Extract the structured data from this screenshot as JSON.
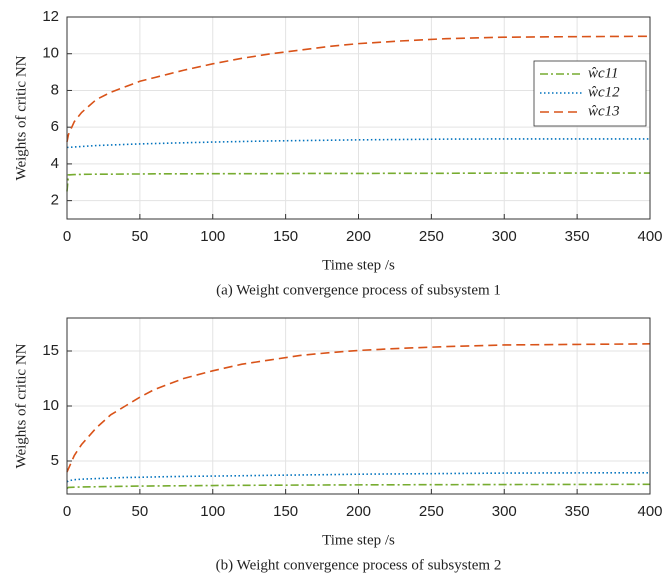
{
  "chart_data": [
    {
      "type": "line",
      "ylabel": "Weights of critic NN",
      "xlabel": "Time step /s",
      "caption": "(a) Weight convergence process of subsystem 1",
      "x": [
        0,
        1,
        5,
        10,
        20,
        30,
        40,
        50,
        60,
        70,
        80,
        100,
        120,
        140,
        160,
        180,
        200,
        230,
        260,
        300,
        350,
        400
      ],
      "series": [
        {
          "name": "ŵc11",
          "color": "#77ac30",
          "dash": "dashdot",
          "values": [
            2.5,
            3.4,
            3.42,
            3.43,
            3.44,
            3.44,
            3.45,
            3.45,
            3.46,
            3.46,
            3.46,
            3.47,
            3.47,
            3.47,
            3.48,
            3.48,
            3.48,
            3.49,
            3.49,
            3.5,
            3.5,
            3.5
          ]
        },
        {
          "name": "ŵc12",
          "color": "#0072bd",
          "dash": "dotted",
          "values": [
            4.9,
            4.9,
            4.92,
            4.95,
            5.0,
            5.03,
            5.06,
            5.09,
            5.11,
            5.13,
            5.15,
            5.19,
            5.22,
            5.25,
            5.27,
            5.29,
            5.31,
            5.33,
            5.35,
            5.36,
            5.36,
            5.36
          ]
        },
        {
          "name": "ŵc13",
          "color": "#d95319",
          "dash": "dashed",
          "values": [
            5.2,
            5.6,
            6.3,
            6.8,
            7.5,
            7.9,
            8.2,
            8.5,
            8.7,
            8.9,
            9.1,
            9.45,
            9.75,
            10.0,
            10.2,
            10.4,
            10.55,
            10.7,
            10.82,
            10.9,
            10.93,
            10.95
          ]
        }
      ],
      "xlim": [
        0,
        400
      ],
      "xticks": [
        0,
        50,
        100,
        150,
        200,
        250,
        300,
        350,
        400
      ],
      "ylim": [
        1,
        12
      ],
      "yticks": [
        2,
        4,
        6,
        8,
        10,
        12
      ],
      "grid": true,
      "legend": "upper right"
    },
    {
      "type": "line",
      "ylabel": "Weights of critic NN",
      "xlabel": "Time step /s",
      "caption": "(b) Weight convergence process of subsystem 2",
      "x": [
        0,
        1,
        5,
        10,
        20,
        30,
        40,
        50,
        60,
        70,
        80,
        100,
        120,
        140,
        160,
        180,
        200,
        230,
        260,
        300,
        350,
        400
      ],
      "series": [
        {
          "color": "#77ac30",
          "dash": "dashdot",
          "values": [
            2.5,
            2.6,
            2.62,
            2.64,
            2.66,
            2.68,
            2.7,
            2.72,
            2.73,
            2.74,
            2.75,
            2.77,
            2.79,
            2.8,
            2.81,
            2.82,
            2.83,
            2.84,
            2.85,
            2.86,
            2.87,
            2.88
          ]
        },
        {
          "color": "#0072bd",
          "dash": "dotted",
          "values": [
            3.1,
            3.2,
            3.3,
            3.35,
            3.4,
            3.45,
            3.5,
            3.52,
            3.55,
            3.58,
            3.6,
            3.63,
            3.66,
            3.7,
            3.73,
            3.76,
            3.8,
            3.83,
            3.86,
            3.9,
            3.92,
            3.93
          ]
        },
        {
          "color": "#d95319",
          "dash": "dashed",
          "values": [
            4.0,
            4.3,
            5.5,
            6.5,
            8.0,
            9.2,
            10.0,
            10.8,
            11.5,
            12.0,
            12.5,
            13.2,
            13.8,
            14.2,
            14.6,
            14.85,
            15.05,
            15.25,
            15.4,
            15.55,
            15.6,
            15.65
          ]
        }
      ],
      "xlim": [
        0,
        400
      ],
      "xticks": [
        0,
        50,
        100,
        150,
        200,
        250,
        300,
        350,
        400
      ],
      "ylim": [
        2,
        18
      ],
      "yticks": [
        5,
        10,
        15
      ],
      "grid": true
    }
  ]
}
